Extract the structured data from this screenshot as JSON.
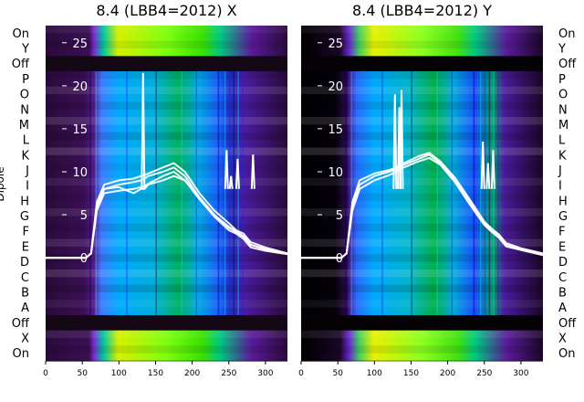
{
  "chart_data": [
    {
      "type": "heatmap",
      "title": "8.4 (LBB4=2012) X",
      "ylabel": "Dipole",
      "row_labels": [
        "On",
        "Y",
        "Off",
        "P",
        "O",
        "N",
        "M",
        "L",
        "K",
        "J",
        "I",
        "H",
        "G",
        "F",
        "E",
        "D",
        "C",
        "B",
        "A",
        "Off",
        "X",
        "On"
      ],
      "x_ticks": [
        0,
        50,
        100,
        150,
        200,
        250,
        300
      ],
      "xlim": [
        0,
        330
      ],
      "overlay_y_ticks": [
        0,
        5,
        10,
        15,
        20,
        25
      ],
      "overlay_ylim": [
        -12,
        27
      ],
      "overlay_color": "#ffffff",
      "overlay_series_x": [
        0,
        55,
        62,
        70,
        80,
        100,
        120,
        130,
        135,
        140,
        160,
        175,
        190,
        210,
        230,
        250,
        260,
        270,
        280,
        300,
        330
      ],
      "overlay_series": [
        {
          "values": [
            0,
            0,
            0.5,
            6,
            8,
            8.5,
            8.8,
            9,
            9.2,
            9.5,
            10,
            10.5,
            9.5,
            7,
            5,
            3.5,
            3,
            2.5,
            1.5,
            1,
            0.5
          ]
        },
        {
          "values": [
            0,
            0,
            0.5,
            6.5,
            8.5,
            9,
            9.2,
            9.5,
            9.6,
            9.8,
            10.5,
            11,
            10,
            7.5,
            5.5,
            4,
            3.2,
            2.8,
            1.8,
            1.2,
            0.5
          ]
        },
        {
          "values": [
            0,
            0,
            0.5,
            5.5,
            7.5,
            7.8,
            8,
            8.2,
            8.3,
            8.6,
            9.5,
            10,
            9,
            6.8,
            4.8,
            3.2,
            2.8,
            2.2,
            1.2,
            0.8,
            0.4
          ]
        },
        {
          "values": [
            0,
            0,
            0.5,
            6,
            8,
            8.2,
            7.5,
            8,
            8,
            8.5,
            9,
            9.5,
            9,
            7,
            5,
            3.6,
            3,
            2.5,
            1.5,
            1,
            0.5
          ]
        }
      ],
      "overlay_spikes": [
        {
          "x": 133,
          "y": 21.5
        },
        {
          "x": 247,
          "y": 12.5
        },
        {
          "x": 253,
          "y": 9.5
        },
        {
          "x": 262,
          "y": 11.5
        },
        {
          "x": 283,
          "y": 12
        }
      ]
    },
    {
      "type": "heatmap",
      "title": "8.4 (LBB4=2012) Y",
      "row_labels": [
        "On",
        "Y",
        "Off",
        "P",
        "O",
        "N",
        "M",
        "L",
        "K",
        "J",
        "I",
        "H",
        "G",
        "F",
        "E",
        "D",
        "C",
        "B",
        "A",
        "Off",
        "X",
        "On"
      ],
      "x_ticks": [
        0,
        50,
        100,
        150,
        200,
        250,
        300
      ],
      "xlim": [
        0,
        330
      ],
      "overlay_y_ticks": [
        0,
        5,
        10,
        15,
        20,
        25
      ],
      "overlay_ylim": [
        -12,
        27
      ],
      "overlay_color": "#ffffff",
      "overlay_series_x": [
        0,
        55,
        62,
        70,
        80,
        100,
        120,
        130,
        135,
        140,
        160,
        175,
        190,
        210,
        230,
        250,
        260,
        270,
        280,
        300,
        330
      ],
      "overlay_series": [
        {
          "values": [
            0,
            0,
            0.5,
            6,
            8.5,
            9.5,
            10,
            10.3,
            10.5,
            10.8,
            11.5,
            12,
            11,
            9,
            6.5,
            4,
            3.2,
            2.5,
            1.5,
            1,
            0.4
          ]
        },
        {
          "values": [
            0,
            0,
            0.5,
            6.5,
            9,
            9.8,
            10.2,
            10.5,
            10.8,
            11,
            11.8,
            12.2,
            11.2,
            9.3,
            6.8,
            4.2,
            3.4,
            2.7,
            1.7,
            1.1,
            0.5
          ]
        },
        {
          "values": [
            0,
            0,
            0.5,
            5.5,
            8,
            9,
            9.6,
            10,
            10.2,
            10.5,
            11.2,
            11.6,
            10.8,
            8.8,
            6.2,
            3.8,
            3,
            2.3,
            1.3,
            0.9,
            0.3
          ]
        }
      ],
      "overlay_spikes": [
        {
          "x": 128,
          "y": 19
        },
        {
          "x": 134,
          "y": 17.5
        },
        {
          "x": 137,
          "y": 19.5
        },
        {
          "x": 248,
          "y": 13.5
        },
        {
          "x": 255,
          "y": 11
        },
        {
          "x": 262,
          "y": 12.5
        }
      ]
    }
  ]
}
